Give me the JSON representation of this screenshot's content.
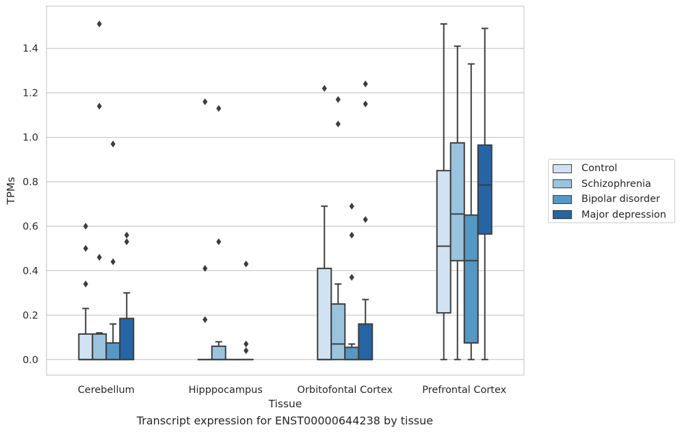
{
  "chart_data": {
    "type": "box",
    "xlabel": "Tissue",
    "ylabel": "TPMs",
    "caption": "Transcript expression for ENST00000644238 by tissue",
    "ylim": [
      -0.07,
      1.59
    ],
    "yticks": [
      "0.0",
      "0.2",
      "0.4",
      "0.6",
      "0.8",
      "1.0",
      "1.2",
      "1.4"
    ],
    "yticks_values": [
      0.0,
      0.2,
      0.4,
      0.6,
      0.8,
      1.0,
      1.2,
      1.4
    ],
    "grid": "horizontal",
    "legend_position": "right",
    "categories": [
      "Cerebellum",
      "Hipppocampus",
      "Orbitofontal Cortex",
      "Prefrontal Cortex"
    ],
    "series": [
      {
        "name": "Control",
        "color": "#d1e2f2",
        "boxes": [
          {
            "whislo": 0.0,
            "q1": 0.0,
            "med": 0.0,
            "q3": 0.115,
            "whishi": 0.23,
            "fliers": [
              0.34,
              0.5,
              0.6
            ]
          },
          {
            "whislo": 0.0,
            "q1": 0.0,
            "med": 0.0,
            "q3": 0.0,
            "whishi": 0.0,
            "fliers": [
              0.18,
              0.41,
              1.16
            ]
          },
          {
            "whislo": 0.0,
            "q1": 0.0,
            "med": 0.0,
            "q3": 0.41,
            "whishi": 0.69,
            "fliers": [
              1.22
            ]
          },
          {
            "whislo": 0.0,
            "q1": 0.21,
            "med": 0.51,
            "q3": 0.85,
            "whishi": 1.51,
            "fliers": []
          }
        ]
      },
      {
        "name": "Schizophrenia",
        "color": "#9ac4de",
        "boxes": [
          {
            "whislo": 0.0,
            "q1": 0.0,
            "med": 0.0,
            "q3": 0.115,
            "whishi": 0.12,
            "fliers": [
              0.46,
              1.14,
              1.51
            ]
          },
          {
            "whislo": 0.0,
            "q1": 0.0,
            "med": 0.0,
            "q3": 0.06,
            "whishi": 0.08,
            "fliers": [
              0.53,
              1.13
            ]
          },
          {
            "whislo": 0.0,
            "q1": 0.0,
            "med": 0.07,
            "q3": 0.25,
            "whishi": 0.34,
            "fliers": [
              1.06,
              1.17
            ]
          },
          {
            "whislo": 0.0,
            "q1": 0.445,
            "med": 0.655,
            "q3": 0.975,
            "whishi": 1.41,
            "fliers": []
          }
        ]
      },
      {
        "name": "Bipolar disorder",
        "color": "#5597c5",
        "boxes": [
          {
            "whislo": 0.0,
            "q1": 0.0,
            "med": 0.0,
            "q3": 0.075,
            "whishi": 0.16,
            "fliers": [
              0.44,
              0.97
            ]
          },
          {
            "whislo": 0.0,
            "q1": 0.0,
            "med": 0.0,
            "q3": 0.0,
            "whishi": 0.0,
            "fliers": []
          },
          {
            "whislo": 0.0,
            "q1": 0.0,
            "med": 0.0,
            "q3": 0.055,
            "whishi": 0.07,
            "fliers": [
              0.37,
              0.56,
              0.69
            ]
          },
          {
            "whislo": 0.0,
            "q1": 0.075,
            "med": 0.445,
            "q3": 0.65,
            "whishi": 1.33,
            "fliers": []
          }
        ]
      },
      {
        "name": "Major depression",
        "color": "#2565a5",
        "boxes": [
          {
            "whislo": 0.0,
            "q1": 0.0,
            "med": 0.0,
            "q3": 0.185,
            "whishi": 0.3,
            "fliers": [
              0.53,
              0.56
            ]
          },
          {
            "whislo": 0.0,
            "q1": 0.0,
            "med": 0.0,
            "q3": 0.0,
            "whishi": 0.0,
            "fliers": [
              0.04,
              0.07,
              0.43
            ]
          },
          {
            "whislo": 0.0,
            "q1": 0.0,
            "med": 0.0,
            "q3": 0.16,
            "whishi": 0.27,
            "fliers": [
              0.63,
              1.15,
              1.24
            ]
          },
          {
            "whislo": 0.0,
            "q1": 0.565,
            "med": 0.785,
            "q3": 0.965,
            "whishi": 1.49,
            "fliers": []
          }
        ]
      }
    ]
  }
}
